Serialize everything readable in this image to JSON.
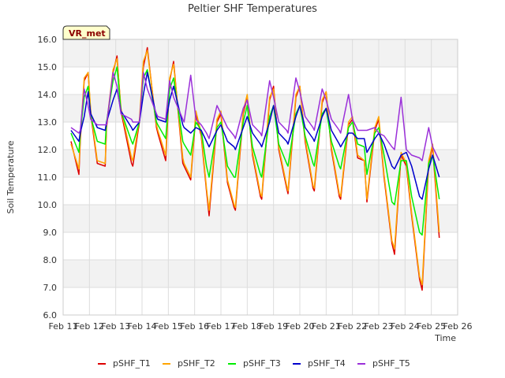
{
  "chart_data": {
    "type": "line",
    "title": "Peltier SHF Temperatures",
    "xlabel": "Time",
    "ylabel": "Soil Temperature",
    "annotation": "VR_met",
    "xlim": [
      11,
      26
    ],
    "ylim": [
      6.0,
      16.0
    ],
    "x_ticks": [
      "Feb 11",
      "Feb 12",
      "Feb 13",
      "Feb 14",
      "Feb 15",
      "Feb 16",
      "Feb 17",
      "Feb 18",
      "Feb 19",
      "Feb 20",
      "Feb 21",
      "Feb 22",
      "Feb 23",
      "Feb 24",
      "Feb 25",
      "Feb 26"
    ],
    "y_ticks": [
      "6.0",
      "7.0",
      "8.0",
      "9.0",
      "10.0",
      "11.0",
      "12.0",
      "13.0",
      "14.0",
      "15.0",
      "16.0"
    ],
    "grid": true,
    "legend_position": "bottom",
    "series": [
      {
        "name": "pSHF_T1",
        "color": "#dd0000",
        "x": [
          11.3,
          11.6,
          11.65,
          11.8,
          11.95,
          12.05,
          12.3,
          12.6,
          12.65,
          12.9,
          13.05,
          13.2,
          13.6,
          13.65,
          13.9,
          14.05,
          14.2,
          14.55,
          14.6,
          14.9,
          15.05,
          15.2,
          15.55,
          15.6,
          15.85,
          16.05,
          16.25,
          16.45,
          16.55,
          16.85,
          17.0,
          17.25,
          17.5,
          17.55,
          17.85,
          18.0,
          18.2,
          18.5,
          18.55,
          18.85,
          19.0,
          19.2,
          19.5,
          19.55,
          19.85,
          20.0,
          20.2,
          20.5,
          20.55,
          20.85,
          21.0,
          21.2,
          21.5,
          21.55,
          21.85,
          22.0,
          22.2,
          22.45,
          22.55,
          22.85,
          23.0,
          23.2,
          23.5,
          23.6,
          23.85,
          24.05,
          24.25,
          24.55,
          24.65,
          24.9,
          25.05,
          25.3
        ],
        "y": [
          12.3,
          11.1,
          12.3,
          14.5,
          14.8,
          13.3,
          11.5,
          11.4,
          12.8,
          14.8,
          15.4,
          13.4,
          11.5,
          11.4,
          13.0,
          15.0,
          15.7,
          12.8,
          12.6,
          11.6,
          14.5,
          15.2,
          11.5,
          11.4,
          10.9,
          13.3,
          12.5,
          10.5,
          9.6,
          13.0,
          13.3,
          10.8,
          9.9,
          9.8,
          13.3,
          13.9,
          11.8,
          10.3,
          10.2,
          13.8,
          14.3,
          12.0,
          10.6,
          10.4,
          13.9,
          14.3,
          12.3,
          10.6,
          10.5,
          13.7,
          14.1,
          12.0,
          10.3,
          10.2,
          12.9,
          13.1,
          11.7,
          11.6,
          10.1,
          12.7,
          13.1,
          11.0,
          8.6,
          8.2,
          11.8,
          11.4,
          9.6,
          7.3,
          6.9,
          11.5,
          12.1,
          8.8
        ]
      },
      {
        "name": "pSHF_T2",
        "color": "#ffa500",
        "x": [
          11.3,
          11.6,
          11.65,
          11.8,
          11.95,
          12.05,
          12.3,
          12.6,
          12.65,
          12.9,
          13.05,
          13.2,
          13.6,
          13.65,
          13.9,
          14.05,
          14.2,
          14.55,
          14.6,
          14.9,
          15.05,
          15.2,
          15.55,
          15.6,
          15.85,
          16.05,
          16.25,
          16.45,
          16.55,
          16.85,
          17.0,
          17.25,
          17.5,
          17.55,
          17.85,
          18.0,
          18.2,
          18.5,
          18.55,
          18.85,
          19.0,
          19.2,
          19.5,
          19.55,
          19.85,
          20.0,
          20.2,
          20.5,
          20.55,
          20.85,
          21.0,
          21.2,
          21.5,
          21.55,
          21.85,
          22.0,
          22.2,
          22.45,
          22.55,
          22.85,
          23.0,
          23.2,
          23.5,
          23.6,
          23.85,
          24.05,
          24.25,
          24.55,
          24.65,
          24.9,
          25.05,
          25.3
        ],
        "y": [
          12.2,
          11.3,
          12.4,
          14.6,
          14.8,
          13.4,
          11.6,
          11.5,
          12.9,
          14.9,
          15.3,
          13.5,
          11.7,
          11.6,
          13.1,
          15.2,
          15.6,
          12.9,
          12.7,
          11.8,
          14.6,
          15.1,
          11.7,
          11.5,
          11.0,
          13.4,
          12.6,
          10.6,
          9.8,
          13.1,
          13.4,
          10.9,
          10.0,
          9.9,
          13.4,
          14.0,
          11.9,
          10.4,
          10.3,
          13.9,
          14.2,
          12.1,
          10.7,
          10.5,
          14.0,
          14.3,
          12.4,
          10.7,
          10.6,
          13.8,
          14.1,
          12.1,
          10.4,
          10.3,
          13.0,
          13.2,
          11.8,
          11.6,
          10.2,
          12.8,
          13.2,
          11.1,
          8.7,
          8.4,
          11.9,
          11.5,
          9.7,
          7.4,
          7.1,
          11.6,
          12.2,
          9.0
        ]
      },
      {
        "name": "pSHF_T3",
        "color": "#00ee00",
        "x": [
          11.3,
          11.6,
          11.65,
          11.8,
          11.95,
          12.05,
          12.3,
          12.6,
          12.65,
          12.9,
          13.05,
          13.2,
          13.6,
          13.65,
          13.9,
          14.05,
          14.2,
          14.55,
          14.6,
          14.9,
          15.05,
          15.2,
          15.55,
          15.6,
          15.85,
          16.05,
          16.25,
          16.45,
          16.55,
          16.85,
          17.0,
          17.25,
          17.5,
          17.55,
          17.85,
          18.0,
          18.2,
          18.5,
          18.55,
          18.85,
          19.0,
          19.2,
          19.5,
          19.55,
          19.85,
          20.0,
          20.2,
          20.5,
          20.55,
          20.85,
          21.0,
          21.2,
          21.5,
          21.55,
          21.85,
          22.0,
          22.2,
          22.45,
          22.55,
          22.85,
          23.0,
          23.2,
          23.5,
          23.6,
          23.85,
          24.05,
          24.25,
          24.55,
          24.65,
          24.9,
          25.05,
          25.3
        ],
        "y": [
          12.6,
          11.9,
          12.6,
          13.9,
          14.3,
          13.2,
          12.3,
          12.2,
          13.0,
          14.5,
          15.0,
          13.4,
          12.3,
          12.2,
          13.0,
          14.6,
          14.9,
          13.0,
          12.9,
          12.4,
          14.2,
          14.6,
          12.3,
          12.2,
          11.8,
          13.0,
          12.7,
          11.4,
          11.0,
          12.8,
          13.0,
          11.4,
          11.0,
          11.0,
          13.0,
          13.6,
          12.1,
          11.1,
          11.0,
          13.2,
          13.6,
          12.2,
          11.5,
          11.4,
          13.3,
          13.6,
          12.5,
          11.5,
          11.4,
          13.3,
          13.5,
          12.3,
          11.4,
          11.3,
          12.8,
          13.0,
          12.2,
          12.1,
          11.1,
          12.6,
          12.8,
          11.8,
          10.1,
          10.0,
          11.6,
          11.6,
          10.3,
          9.0,
          8.9,
          11.5,
          11.8,
          10.2
        ]
      },
      {
        "name": "pSHF_T4",
        "color": "#0000cc",
        "x": [
          11.3,
          11.6,
          11.65,
          11.8,
          11.95,
          12.05,
          12.3,
          12.6,
          12.65,
          12.9,
          13.05,
          13.2,
          13.6,
          13.65,
          13.9,
          14.05,
          14.2,
          14.55,
          14.6,
          14.9,
          15.05,
          15.2,
          15.55,
          15.6,
          15.85,
          16.05,
          16.25,
          16.45,
          16.55,
          16.85,
          17.0,
          17.25,
          17.5,
          17.55,
          17.85,
          18.0,
          18.2,
          18.5,
          18.55,
          18.85,
          19.0,
          19.2,
          19.5,
          19.55,
          19.85,
          20.0,
          20.2,
          20.5,
          20.55,
          20.85,
          21.0,
          21.2,
          21.5,
          21.55,
          21.85,
          22.0,
          22.2,
          22.45,
          22.55,
          22.85,
          23.0,
          23.2,
          23.5,
          23.6,
          23.85,
          24.05,
          24.25,
          24.55,
          24.65,
          24.9,
          25.05,
          25.3
        ],
        "y": [
          12.7,
          12.3,
          12.6,
          13.2,
          14.1,
          13.3,
          12.8,
          12.7,
          13.0,
          13.8,
          14.2,
          13.4,
          12.8,
          12.7,
          13.0,
          14.0,
          14.8,
          13.2,
          13.1,
          13.0,
          13.8,
          14.3,
          12.9,
          12.8,
          12.6,
          12.8,
          12.7,
          12.3,
          12.1,
          12.7,
          12.9,
          12.3,
          12.1,
          12.0,
          12.8,
          13.2,
          12.6,
          12.2,
          12.1,
          13.0,
          13.6,
          12.6,
          12.3,
          12.2,
          13.2,
          13.6,
          12.8,
          12.4,
          12.3,
          13.2,
          13.5,
          12.7,
          12.2,
          12.1,
          12.6,
          12.6,
          12.4,
          12.4,
          11.9,
          12.4,
          12.6,
          12.2,
          11.4,
          11.3,
          11.8,
          11.9,
          11.4,
          10.3,
          10.2,
          11.3,
          11.8,
          11.0
        ]
      },
      {
        "name": "pSHF_T5",
        "color": "#9b30d9",
        "x": [
          11.3,
          11.6,
          11.65,
          11.8,
          11.95,
          12.05,
          12.3,
          12.6,
          12.65,
          12.9,
          13.05,
          13.2,
          13.6,
          13.65,
          13.9,
          14.05,
          14.2,
          14.55,
          14.6,
          14.9,
          15.05,
          15.2,
          15.55,
          15.6,
          15.85,
          16.05,
          16.25,
          16.45,
          16.55,
          16.85,
          17.0,
          17.25,
          17.5,
          17.55,
          17.85,
          18.0,
          18.2,
          18.5,
          18.55,
          18.85,
          19.0,
          19.2,
          19.5,
          19.55,
          19.85,
          20.0,
          20.2,
          20.5,
          20.55,
          20.85,
          21.0,
          21.2,
          21.5,
          21.55,
          21.85,
          22.0,
          22.2,
          22.45,
          22.55,
          22.85,
          23.0,
          23.2,
          23.5,
          23.6,
          23.85,
          24.05,
          24.25,
          24.55,
          24.65,
          24.9,
          25.05,
          25.3
        ],
        "y": [
          12.8,
          12.6,
          12.7,
          14.2,
          13.6,
          13.1,
          12.9,
          12.9,
          12.9,
          14.8,
          14.3,
          13.3,
          13.1,
          13.0,
          13.0,
          14.8,
          14.2,
          13.3,
          13.2,
          13.1,
          14.5,
          13.9,
          13.1,
          13.0,
          14.7,
          13.1,
          12.9,
          12.6,
          12.4,
          13.6,
          13.3,
          12.8,
          12.5,
          12.4,
          13.5,
          13.8,
          12.9,
          12.6,
          12.5,
          14.5,
          13.9,
          13.0,
          12.7,
          12.6,
          14.6,
          14.1,
          13.2,
          12.8,
          12.7,
          14.2,
          13.8,
          13.1,
          12.7,
          12.6,
          14.0,
          13.1,
          12.7,
          12.7,
          12.7,
          12.8,
          12.6,
          12.5,
          12.1,
          12.0,
          13.9,
          12.0,
          11.8,
          11.7,
          11.6,
          12.8,
          12.1,
          11.6
        ]
      }
    ]
  }
}
